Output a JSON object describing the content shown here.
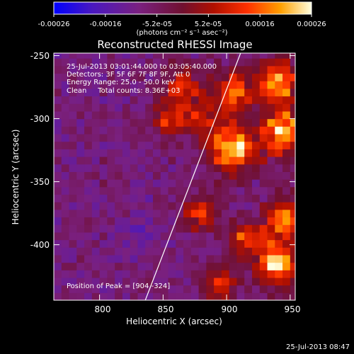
{
  "colorbar": {
    "ticks": [
      "-0.00026",
      "-0.00016",
      "-5.2e-05",
      "5.2e-05",
      "0.00016",
      "0.00026"
    ],
    "units": "(photons cm⁻² s⁻¹ asec⁻²)",
    "range": [
      -0.00026,
      0.00026
    ],
    "stops": [
      "#0000ff",
      "#5a1aa0",
      "#7a2060",
      "#a01010",
      "#ff2000",
      "#ff8c00",
      "#ffd060",
      "#ffffe0"
    ]
  },
  "plot": {
    "title": "Reconstructed RHESSI Image",
    "xlabel": "Heliocentric X (arcsec)",
    "ylabel": "Heliocentric Y (arcsec)",
    "x_ticks": [
      "800",
      "850",
      "900",
      "950"
    ],
    "y_ticks": [
      "-250",
      "-300",
      "-350",
      "-400"
    ],
    "xlim": [
      764,
      954
    ],
    "ylim": [
      -444,
      -248
    ]
  },
  "info": {
    "line1": "25-Jul-2013 03:01:44.000 to 03:05:40.000",
    "line2": "Detectors: 3F 5F 6F 7F 8F 9F, Att 0",
    "line3": "Energy Range: 25.0 - 50.0 keV",
    "line4": "Clean     Total counts: 8.36E+03",
    "peak": "Position of Peak = [904,-324]"
  },
  "timestamp": "25-Jul-2013 08:47",
  "chart_data": {
    "type": "heatmap",
    "title": "Reconstructed RHESSI Image",
    "xlabel": "Heliocentric X (arcsec)",
    "ylabel": "Heliocentric Y (arcsec)",
    "xlim": [
      764,
      954
    ],
    "ylim": [
      -444,
      -248
    ],
    "x_ticks": [
      800,
      850,
      900,
      950
    ],
    "y_ticks": [
      -250,
      -300,
      -350,
      -400
    ],
    "colorbar_range": [
      -0.00026,
      0.00026
    ],
    "sources": [
      {
        "x": 904,
        "y": -324,
        "value": 0.00026,
        "radius": 18
      },
      {
        "x": 945,
        "y": -310,
        "value": 0.00022,
        "radius": 16
      },
      {
        "x": 940,
        "y": -270,
        "value": 0.00018,
        "radius": 16
      },
      {
        "x": 940,
        "y": -415,
        "value": 0.0002,
        "radius": 16
      },
      {
        "x": 945,
        "y": -380,
        "value": 0.00016,
        "radius": 14
      },
      {
        "x": 905,
        "y": -280,
        "value": 0.00013,
        "radius": 18
      },
      {
        "x": 880,
        "y": -375,
        "value": 0.00011,
        "radius": 14
      },
      {
        "x": 915,
        "y": -395,
        "value": 0.00012,
        "radius": 14
      },
      {
        "x": 865,
        "y": -275,
        "value": 0.0001,
        "radius": 16
      },
      {
        "x": 855,
        "y": -300,
        "value": 9e-05,
        "radius": 14
      },
      {
        "x": 895,
        "y": -430,
        "value": 0.00011,
        "radius": 14
      },
      {
        "x": 880,
        "y": -300,
        "value": 8e-05,
        "radius": 12
      },
      {
        "x": 830,
        "y": -395,
        "value": -0.00013,
        "radius": 16
      },
      {
        "x": 812,
        "y": -355,
        "value": -7e-05,
        "radius": 14
      },
      {
        "x": 835,
        "y": -425,
        "value": -8e-05,
        "radius": 12
      }
    ],
    "limb": [
      {
        "x": 911,
        "y": -248
      },
      {
        "x": 836,
        "y": -444
      }
    ],
    "peak": {
      "x": 904,
      "y": -324
    }
  }
}
